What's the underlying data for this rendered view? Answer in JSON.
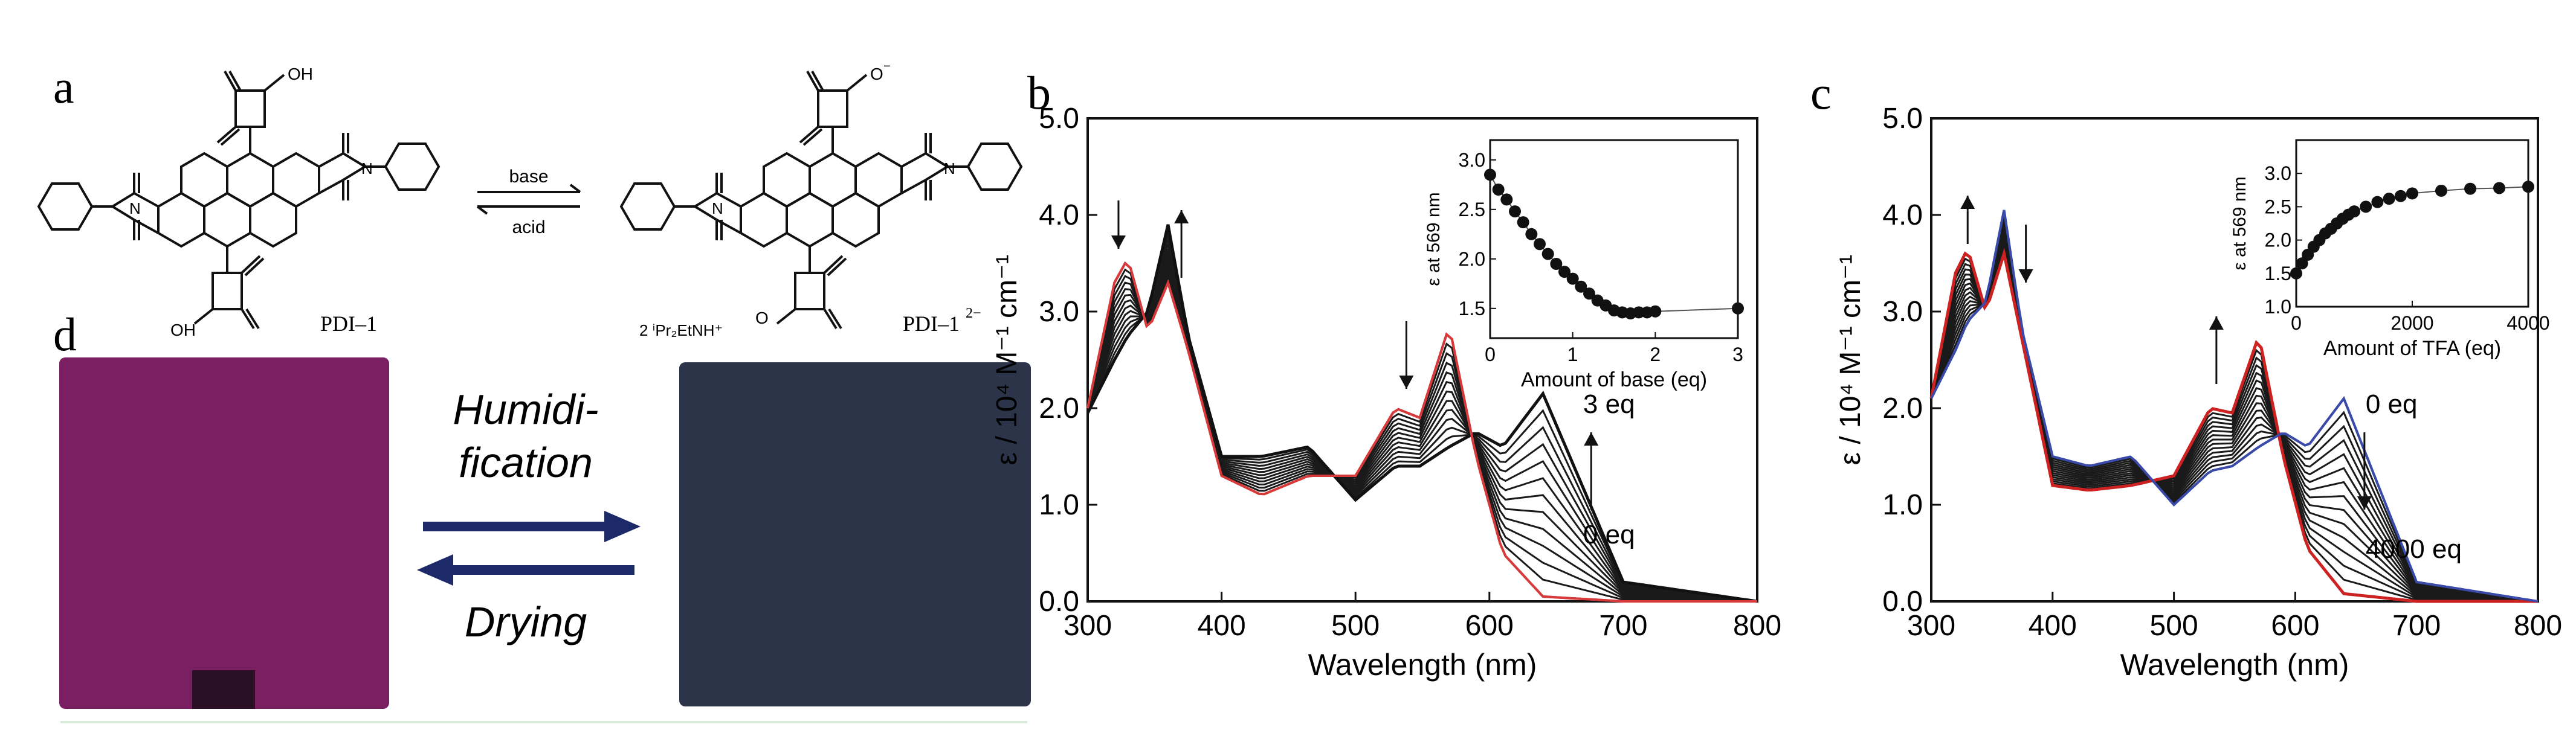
{
  "panel_a": {
    "letter": "a",
    "left_compound": "PDI–1",
    "right_compound_base": "PDI–1",
    "right_compound_charge": "2−",
    "arrow_top": "base",
    "arrow_bottom": "acid",
    "oh_label": "OH",
    "o_minus_label": "O",
    "cation_label": "2 ⁱPr₂EtNH⁺",
    "atom_o": "O",
    "atom_n": "N"
  },
  "panel_d": {
    "letter": "d",
    "arrow_top_label_1": "Humidi-",
    "arrow_top_label_2": "fication",
    "arrow_bottom_label": "Drying",
    "colors": {
      "left_film": "#7a1f62",
      "right_film": "#2b3448",
      "arrow": "#1c2a6a"
    }
  },
  "panel_b": {
    "letter": "b"
  },
  "panel_c": {
    "letter": "c"
  },
  "chart_data": [
    {
      "id": "b",
      "type": "line",
      "title": "",
      "xlabel": "Wavelength (nm)",
      "ylabel": "ε / 10⁴ M⁻¹ cm⁻¹",
      "xlim": [
        300,
        800
      ],
      "ylim": [
        0,
        5
      ],
      "x_ticks": [
        "300",
        "400",
        "500",
        "600",
        "700",
        "800"
      ],
      "y_ticks": [
        "0.0",
        "1.0",
        "2.0",
        "3.0",
        "4.0",
        "5.0"
      ],
      "series_count": 13,
      "first_series": {
        "name": "0 eq (PDI–1)",
        "color": "#d63a3a",
        "x": [
          300,
          320,
          330,
          345,
          360,
          375,
          400,
          430,
          465,
          500,
          530,
          548,
          570,
          590,
          610,
          640,
          700,
          800
        ],
        "y": [
          2.0,
          3.3,
          3.55,
          2.8,
          3.3,
          2.6,
          1.3,
          1.1,
          1.3,
          1.3,
          2.0,
          1.9,
          2.85,
          1.5,
          0.5,
          0.05,
          0.0,
          0.0
        ]
      },
      "last_series": {
        "name": "3 eq",
        "color": "#111111",
        "x": [
          300,
          320,
          330,
          345,
          360,
          375,
          400,
          430,
          465,
          500,
          530,
          548,
          570,
          590,
          610,
          640,
          700,
          800
        ],
        "y": [
          1.95,
          2.5,
          2.75,
          3.0,
          3.9,
          2.75,
          1.5,
          1.5,
          1.6,
          1.05,
          1.4,
          1.4,
          1.6,
          1.75,
          1.6,
          2.15,
          0.2,
          0.0
        ]
      },
      "annotations": [
        "3 eq",
        "0 eq"
      ],
      "inset": {
        "type": "scatter",
        "xlabel": "Amount of base (eq)",
        "ylabel": "ε at 569 nm",
        "xlim": [
          0,
          3
        ],
        "ylim": [
          1.2,
          3.2
        ],
        "x_ticks": [
          "0",
          "1",
          "2",
          "3"
        ],
        "y_ticks": [
          "1.5",
          "2.0",
          "2.5",
          "3.0"
        ],
        "x": [
          0,
          0.1,
          0.2,
          0.3,
          0.4,
          0.5,
          0.6,
          0.7,
          0.8,
          0.9,
          1.0,
          1.1,
          1.2,
          1.3,
          1.4,
          1.5,
          1.6,
          1.7,
          1.8,
          1.9,
          2.0,
          3.0
        ],
        "y": [
          2.85,
          2.7,
          2.6,
          2.48,
          2.37,
          2.25,
          2.15,
          2.05,
          1.95,
          1.87,
          1.8,
          1.72,
          1.65,
          1.58,
          1.53,
          1.48,
          1.46,
          1.45,
          1.46,
          1.46,
          1.47,
          1.5
        ]
      }
    },
    {
      "id": "c",
      "type": "line",
      "title": "",
      "xlabel": "Wavelength (nm)",
      "ylabel": "ε / 10⁴ M⁻¹ cm⁻¹",
      "xlim": [
        300,
        800
      ],
      "ylim": [
        0,
        5
      ],
      "x_ticks": [
        "300",
        "400",
        "500",
        "600",
        "700",
        "800"
      ],
      "y_ticks": [
        "0.0",
        "1.0",
        "2.0",
        "3.0",
        "4.0",
        "5.0"
      ],
      "series_count": 15,
      "first_series": {
        "name": "0 eq (PDI–1²⁻)",
        "color": "#3a4aa8",
        "x": [
          300,
          320,
          330,
          345,
          360,
          375,
          400,
          430,
          465,
          500,
          530,
          548,
          570,
          590,
          610,
          640,
          700,
          800
        ],
        "y": [
          2.1,
          2.6,
          2.9,
          3.1,
          4.05,
          2.8,
          1.5,
          1.4,
          1.5,
          1.0,
          1.35,
          1.4,
          1.6,
          1.75,
          1.6,
          2.1,
          0.2,
          0.0
        ]
      },
      "last_series": {
        "name": "4000 eq",
        "color": "#cc2222",
        "x": [
          300,
          320,
          330,
          345,
          360,
          375,
          400,
          430,
          465,
          500,
          530,
          548,
          570,
          590,
          610,
          640,
          700,
          800
        ],
        "y": [
          2.1,
          3.4,
          3.65,
          3.0,
          3.6,
          2.7,
          1.2,
          1.15,
          1.2,
          1.3,
          2.0,
          1.95,
          2.75,
          1.5,
          0.55,
          0.08,
          0.0,
          0.0
        ]
      },
      "annotations": [
        "0 eq",
        "4000 eq"
      ],
      "inset": {
        "type": "scatter",
        "xlabel": "Amount of TFA (eq)",
        "ylabel": "ε at 569 nm",
        "xlim": [
          0,
          4000
        ],
        "ylim": [
          1.0,
          3.5
        ],
        "x_ticks": [
          "0",
          "2000",
          "4000"
        ],
        "y_ticks": [
          "1.0",
          "1.5",
          "2.0",
          "2.5",
          "3.0"
        ],
        "x": [
          0,
          100,
          200,
          300,
          400,
          500,
          600,
          700,
          800,
          900,
          1000,
          1200,
          1400,
          1600,
          1800,
          2000,
          2500,
          3000,
          3500,
          4000
        ],
        "y": [
          1.5,
          1.65,
          1.78,
          1.9,
          2.0,
          2.1,
          2.17,
          2.25,
          2.32,
          2.38,
          2.43,
          2.5,
          2.57,
          2.62,
          2.66,
          2.7,
          2.74,
          2.77,
          2.78,
          2.8
        ]
      }
    }
  ]
}
